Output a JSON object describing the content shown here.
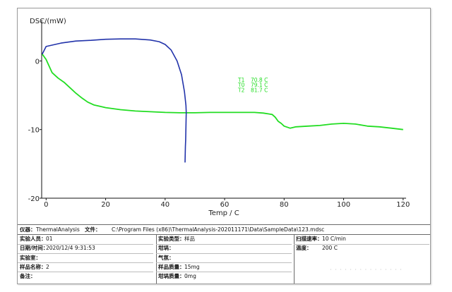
{
  "chart_data": {
    "type": "line",
    "title": "",
    "ylabel": "DSC/(mW)",
    "xlabel": "Temp / C",
    "xlim": [
      -1.5,
      121
    ],
    "ylim": [
      -20,
      6
    ],
    "x_ticks": [
      0,
      20,
      40,
      60,
      80,
      100,
      120
    ],
    "y_ticks": [
      0,
      -10,
      -20
    ],
    "grid": false,
    "series": [
      {
        "color": "#22dd22",
        "points": [
          [
            -1.3,
            1.0
          ],
          [
            0,
            0.2
          ],
          [
            2,
            -1.7
          ],
          [
            4,
            -2.5
          ],
          [
            6,
            -3.1
          ],
          [
            8,
            -3.9
          ],
          [
            10,
            -4.7
          ],
          [
            12,
            -5.4
          ],
          [
            14,
            -6.0
          ],
          [
            16,
            -6.4
          ],
          [
            18,
            -6.6
          ],
          [
            20,
            -6.8
          ],
          [
            25,
            -7.1
          ],
          [
            30,
            -7.3
          ],
          [
            35,
            -7.4
          ],
          [
            40,
            -7.5
          ],
          [
            45,
            -7.55
          ],
          [
            50,
            -7.55
          ],
          [
            55,
            -7.5
          ],
          [
            60,
            -7.5
          ],
          [
            65,
            -7.5
          ],
          [
            70,
            -7.5
          ],
          [
            73,
            -7.6
          ],
          [
            76,
            -7.8
          ],
          [
            77,
            -8.2
          ],
          [
            78,
            -8.8
          ],
          [
            79,
            -9.1
          ],
          [
            80,
            -9.5
          ],
          [
            82,
            -9.8
          ],
          [
            84,
            -9.6
          ],
          [
            88,
            -9.5
          ],
          [
            92,
            -9.4
          ],
          [
            96,
            -9.2
          ],
          [
            100,
            -9.1
          ],
          [
            104,
            -9.2
          ],
          [
            108,
            -9.5
          ],
          [
            112,
            -9.6
          ],
          [
            116,
            -9.8
          ],
          [
            120,
            -10.0
          ]
        ]
      },
      {
        "color": "#2233aa",
        "points": [
          [
            -1.3,
            1.0
          ],
          [
            0,
            2.1
          ],
          [
            5,
            2.6
          ],
          [
            10,
            2.9
          ],
          [
            15,
            3.0
          ],
          [
            20,
            3.15
          ],
          [
            25,
            3.2
          ],
          [
            30,
            3.2
          ],
          [
            35,
            3.05
          ],
          [
            38,
            2.8
          ],
          [
            40,
            2.4
          ],
          [
            42,
            1.6
          ],
          [
            44,
            0.0
          ],
          [
            45.5,
            -2.0
          ],
          [
            46.5,
            -4.5
          ],
          [
            47,
            -6.5
          ],
          [
            47.1,
            -7.5
          ],
          [
            47,
            -9.5
          ],
          [
            46.9,
            -11.5
          ],
          [
            46.8,
            -12.5
          ],
          [
            46.7,
            -14.8
          ]
        ]
      }
    ],
    "legend": [
      {
        "label": "T1",
        "value": "70.8 C"
      },
      {
        "label": "T0",
        "value": "79.1 C"
      },
      {
        "label": "T2",
        "value": "81.7 C"
      }
    ],
    "legend_color": "#22dd22"
  },
  "info": {
    "instrument_label": "仪器：",
    "instrument_value": "ThermalAnalysis",
    "file_label": "文件：",
    "file_value": "C:\\Program Files (x86)\\ThermalAnalysis-202011171\\Data\\SampleData\\123.mdsc",
    "col1": [
      {
        "label": "实验人员：",
        "value": "01"
      },
      {
        "label": "日期/时间：",
        "value": "2020/12/4 9:31:53"
      },
      {
        "label": "实验室：",
        "value": ""
      },
      {
        "label": "样品名称：",
        "value": "2"
      },
      {
        "label": "备注：",
        "value": ""
      }
    ],
    "col2": [
      {
        "label": "实验类型：",
        "value": "样品"
      },
      {
        "label": "坩埚：",
        "value": ""
      },
      {
        "label": "气氛：",
        "value": ""
      },
      {
        "label": "样品质量：",
        "value": "15mg"
      },
      {
        "label": "坩埚质量：",
        "value": "0mg"
      }
    ],
    "col3": [
      {
        "label": "扫描速率：",
        "value": "10 C/min"
      },
      {
        "label": "温度：",
        "value": "200 C"
      }
    ]
  }
}
